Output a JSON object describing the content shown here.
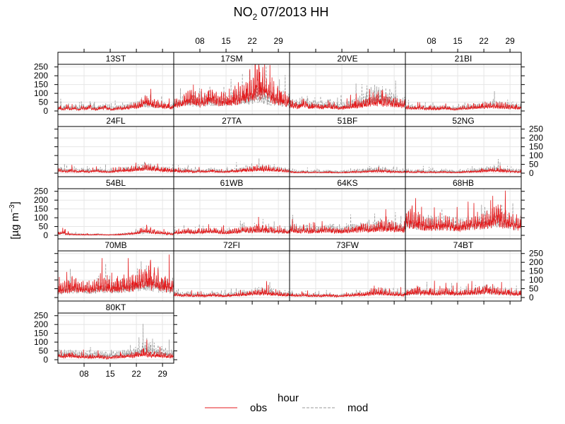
{
  "chart_data": {
    "type": "line",
    "title_main": "NO",
    "title_sub": "2",
    "title_rest": " 07/2013 HH",
    "ylabel_main": "[µg m",
    "ylabel_sup": "−3",
    "ylabel_end": "]",
    "x_ticks": [
      {
        "day": 8,
        "label": "08"
      },
      {
        "day": 15,
        "label": "15"
      },
      {
        "day": 22,
        "label": "22"
      },
      {
        "day": 29,
        "label": "29"
      }
    ],
    "xlim": [
      1,
      32
    ],
    "y_ticks": [
      0,
      50,
      100,
      150,
      200,
      250
    ],
    "ylim": [
      -20,
      265
    ],
    "grid": true,
    "legend_title": "hour",
    "legend_position": "bottom",
    "series": [
      {
        "name": "obs",
        "color": "#e41a1c",
        "dash": "solid"
      },
      {
        "name": "mod",
        "color": "#999999",
        "dash": "dashed"
      }
    ],
    "panels": [
      {
        "name": "13ST",
        "obs": [
          18,
          12,
          25,
          15,
          20,
          10,
          22,
          18,
          30,
          15,
          12,
          20,
          25,
          18,
          10,
          15,
          22,
          20,
          25,
          30,
          35,
          40,
          55,
          70,
          60,
          50,
          45,
          40,
          35,
          30,
          28
        ],
        "mod": [
          28,
          22,
          30,
          25,
          28,
          20,
          30,
          25,
          35,
          28,
          22,
          30,
          32,
          28,
          20,
          25,
          30,
          28,
          32,
          35,
          40,
          45,
          50,
          55,
          50,
          45,
          42,
          40,
          38,
          35,
          33
        ]
      },
      {
        "name": "17SM",
        "obs": [
          50,
          55,
          70,
          80,
          90,
          75,
          70,
          65,
          80,
          90,
          100,
          85,
          80,
          75,
          70,
          80,
          90,
          100,
          110,
          120,
          130,
          150,
          200,
          180,
          160,
          140,
          120,
          100,
          90,
          80,
          70
        ],
        "mod": [
          55,
          60,
          65,
          70,
          75,
          70,
          68,
          65,
          70,
          75,
          80,
          75,
          72,
          70,
          68,
          72,
          78,
          85,
          90,
          95,
          100,
          110,
          120,
          115,
          110,
          100,
          90,
          85,
          80,
          75,
          70
        ]
      },
      {
        "name": "20VE",
        "obs": [
          45,
          40,
          35,
          50,
          45,
          30,
          35,
          30,
          25,
          30,
          35,
          30,
          25,
          20,
          25,
          30,
          35,
          40,
          45,
          50,
          55,
          60,
          65,
          70,
          75,
          70,
          65,
          60,
          55,
          50,
          45
        ],
        "mod": [
          60,
          55,
          50,
          65,
          60,
          45,
          50,
          45,
          40,
          45,
          50,
          45,
          40,
          35,
          40,
          45,
          50,
          55,
          60,
          70,
          80,
          90,
          100,
          110,
          120,
          100,
          90,
          80,
          70,
          60,
          55
        ]
      },
      {
        "name": "21BI",
        "obs": [
          25,
          20,
          18,
          25,
          22,
          15,
          20,
          18,
          15,
          20,
          22,
          18,
          15,
          12,
          18,
          20,
          22,
          25,
          28,
          30,
          32,
          35,
          38,
          40,
          38,
          35,
          32,
          30,
          28,
          25,
          22
        ],
        "mod": [
          30,
          28,
          25,
          30,
          28,
          22,
          26,
          24,
          22,
          26,
          28,
          25,
          22,
          20,
          24,
          26,
          28,
          30,
          32,
          35,
          38,
          40,
          42,
          45,
          42,
          40,
          38,
          35,
          32,
          30,
          28
        ]
      },
      {
        "name": "24FL",
        "obs": [
          20,
          15,
          12,
          18,
          15,
          10,
          15,
          12,
          10,
          15,
          18,
          12,
          10,
          8,
          12,
          15,
          18,
          20,
          22,
          25,
          28,
          30,
          32,
          40,
          35,
          30,
          28,
          25,
          22,
          20,
          18
        ],
        "mod": [
          25,
          22,
          20,
          24,
          22,
          18,
          22,
          20,
          18,
          22,
          24,
          20,
          18,
          16,
          20,
          22,
          24,
          26,
          28,
          30,
          32,
          35,
          38,
          45,
          40,
          35,
          32,
          30,
          28,
          25,
          22
        ]
      },
      {
        "name": "27TA",
        "obs": [
          18,
          15,
          12,
          16,
          14,
          10,
          14,
          12,
          10,
          14,
          16,
          12,
          10,
          8,
          12,
          14,
          16,
          18,
          20,
          22,
          25,
          28,
          30,
          32,
          30,
          28,
          25,
          22,
          20,
          18,
          16
        ],
        "mod": [
          24,
          22,
          20,
          22,
          20,
          18,
          20,
          18,
          16,
          20,
          22,
          18,
          16,
          14,
          18,
          20,
          22,
          24,
          26,
          28,
          30,
          32,
          34,
          36,
          34,
          32,
          30,
          28,
          26,
          24,
          22
        ]
      },
      {
        "name": "51BF",
        "obs": [
          8,
          6,
          5,
          7,
          6,
          4,
          6,
          5,
          4,
          6,
          7,
          5,
          4,
          3,
          5,
          6,
          7,
          8,
          9,
          10,
          12,
          14,
          15,
          16,
          15,
          14,
          12,
          10,
          9,
          8,
          7
        ],
        "mod": [
          15,
          14,
          12,
          14,
          13,
          11,
          13,
          12,
          11,
          13,
          14,
          12,
          11,
          10,
          12,
          13,
          14,
          15,
          16,
          18,
          20,
          22,
          24,
          25,
          24,
          22,
          20,
          18,
          16,
          15,
          14
        ]
      },
      {
        "name": "52NG",
        "obs": [
          10,
          8,
          6,
          9,
          8,
          5,
          8,
          6,
          5,
          8,
          9,
          6,
          5,
          4,
          6,
          8,
          9,
          10,
          12,
          14,
          16,
          18,
          20,
          22,
          20,
          18,
          16,
          14,
          12,
          10,
          9
        ],
        "mod": [
          18,
          16,
          14,
          17,
          16,
          12,
          16,
          14,
          12,
          16,
          17,
          14,
          12,
          10,
          14,
          16,
          17,
          18,
          20,
          22,
          25,
          28,
          30,
          32,
          30,
          28,
          25,
          22,
          20,
          18,
          16
        ]
      },
      {
        "name": "54BL",
        "obs": [
          15,
          25,
          10,
          8,
          6,
          5,
          6,
          5,
          4,
          5,
          6,
          5,
          4,
          3,
          4,
          5,
          6,
          8,
          10,
          12,
          15,
          20,
          30,
          35,
          30,
          25,
          20,
          18,
          15,
          12,
          10
        ],
        "mod": [
          12,
          18,
          10,
          8,
          7,
          6,
          7,
          6,
          5,
          6,
          7,
          6,
          5,
          4,
          5,
          6,
          7,
          9,
          11,
          13,
          16,
          20,
          25,
          30,
          28,
          24,
          20,
          18,
          15,
          13,
          11
        ]
      },
      {
        "name": "61WB",
        "obs": [
          20,
          18,
          25,
          30,
          28,
          22,
          26,
          24,
          30,
          35,
          32,
          28,
          25,
          22,
          20,
          25,
          30,
          35,
          40,
          38,
          35,
          40,
          45,
          42,
          40,
          38,
          35,
          32,
          30,
          28,
          25
        ],
        "mod": [
          22,
          20,
          24,
          28,
          26,
          22,
          25,
          24,
          28,
          32,
          30,
          28,
          26,
          24,
          22,
          26,
          30,
          34,
          38,
          36,
          34,
          38,
          42,
          40,
          38,
          36,
          34,
          32,
          30,
          28,
          26
        ]
      },
      {
        "name": "64KS",
        "obs": [
          40,
          35,
          30,
          38,
          35,
          28,
          32,
          30,
          35,
          40,
          38,
          35,
          30,
          28,
          32,
          35,
          38,
          40,
          45,
          50,
          48,
          45,
          50,
          55,
          60,
          58,
          55,
          52,
          48,
          45,
          42
        ],
        "mod": [
          50,
          45,
          40,
          48,
          45,
          38,
          42,
          40,
          45,
          50,
          48,
          45,
          40,
          38,
          42,
          45,
          48,
          50,
          55,
          60,
          58,
          55,
          60,
          65,
          70,
          68,
          65,
          62,
          58,
          55,
          52
        ]
      },
      {
        "name": "68HB",
        "obs": [
          120,
          110,
          100,
          90,
          80,
          70,
          75,
          70,
          65,
          80,
          85,
          75,
          70,
          65,
          60,
          70,
          75,
          80,
          85,
          90,
          95,
          100,
          110,
          120,
          130,
          115,
          105,
          95,
          85,
          80,
          75
        ],
        "mod": [
          100,
          95,
          90,
          85,
          80,
          75,
          78,
          75,
          72,
          80,
          85,
          80,
          75,
          70,
          68,
          75,
          80,
          85,
          90,
          95,
          100,
          105,
          110,
          120,
          125,
          115,
          105,
          95,
          88,
          82,
          78
        ]
      },
      {
        "name": "70MB",
        "obs": [
          60,
          65,
          70,
          80,
          85,
          75,
          70,
          65,
          60,
          70,
          80,
          85,
          90,
          80,
          70,
          75,
          80,
          85,
          90,
          95,
          100,
          110,
          120,
          130,
          140,
          120,
          110,
          100,
          90,
          85,
          80
        ],
        "mod": [
          50,
          55,
          60,
          65,
          70,
          65,
          60,
          55,
          52,
          60,
          65,
          70,
          72,
          68,
          62,
          65,
          70,
          72,
          75,
          80,
          85,
          90,
          95,
          100,
          105,
          95,
          88,
          82,
          78,
          72,
          68
        ]
      },
      {
        "name": "72FI",
        "obs": [
          20,
          18,
          15,
          18,
          16,
          12,
          15,
          14,
          12,
          15,
          18,
          15,
          12,
          10,
          14,
          16,
          18,
          20,
          22,
          25,
          28,
          32,
          35,
          38,
          35,
          32,
          28,
          25,
          22,
          20,
          18
        ],
        "mod": [
          28,
          25,
          22,
          25,
          24,
          20,
          22,
          20,
          18,
          22,
          25,
          22,
          20,
          18,
          20,
          22,
          25,
          28,
          30,
          32,
          35,
          38,
          40,
          42,
          40,
          38,
          35,
          32,
          30,
          28,
          25
        ]
      },
      {
        "name": "73FW",
        "obs": [
          18,
          16,
          14,
          16,
          15,
          12,
          14,
          13,
          11,
          14,
          16,
          13,
          11,
          10,
          13,
          15,
          17,
          18,
          20,
          22,
          25,
          30,
          35,
          40,
          38,
          35,
          30,
          28,
          25,
          22,
          20
        ],
        "mod": [
          22,
          20,
          18,
          20,
          19,
          16,
          18,
          17,
          15,
          18,
          20,
          17,
          15,
          14,
          17,
          19,
          21,
          22,
          24,
          26,
          28,
          32,
          36,
          40,
          38,
          36,
          32,
          30,
          28,
          25,
          22
        ]
      },
      {
        "name": "74BT",
        "obs": [
          30,
          35,
          40,
          45,
          40,
          35,
          38,
          35,
          30,
          35,
          40,
          38,
          35,
          30,
          28,
          32,
          35,
          38,
          40,
          45,
          50,
          55,
          50,
          45,
          42,
          40,
          38,
          35,
          32,
          30,
          28
        ],
        "mod": [
          32,
          35,
          38,
          42,
          40,
          36,
          38,
          36,
          32,
          36,
          40,
          38,
          36,
          32,
          30,
          34,
          36,
          38,
          40,
          44,
          48,
          52,
          50,
          46,
          44,
          42,
          40,
          38,
          35,
          32,
          30
        ]
      },
      {
        "name": "80KT",
        "obs": [
          30,
          25,
          28,
          30,
          25,
          20,
          22,
          20,
          18,
          20,
          22,
          20,
          18,
          15,
          18,
          20,
          22,
          25,
          28,
          30,
          32,
          35,
          40,
          45,
          40,
          35,
          32,
          30,
          28,
          25,
          22
        ],
        "mod": [
          45,
          40,
          42,
          45,
          40,
          35,
          38,
          35,
          32,
          35,
          38,
          35,
          32,
          30,
          35,
          38,
          40,
          42,
          45,
          50,
          55,
          60,
          70,
          80,
          75,
          65,
          60,
          55,
          50,
          45,
          42
        ]
      }
    ]
  }
}
